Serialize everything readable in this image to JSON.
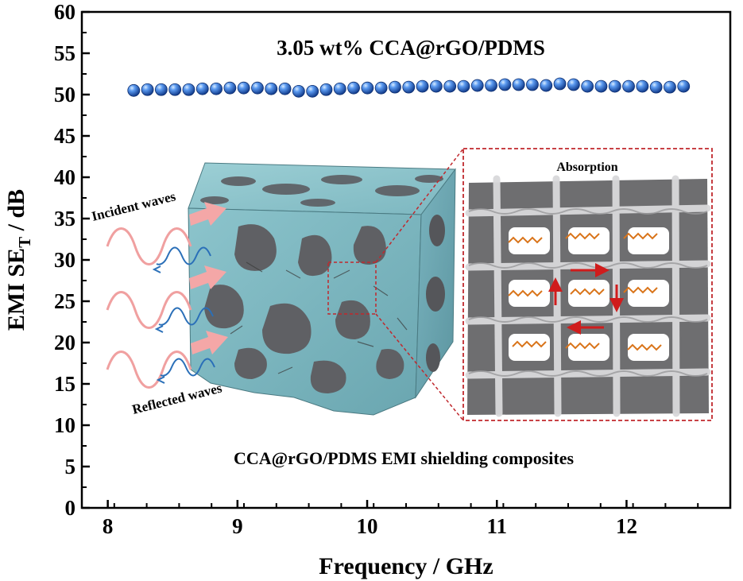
{
  "chart_data": {
    "type": "scatter",
    "title": "",
    "xlabel": "Frequency / GHz",
    "ylabel_main": "EMI SE",
    "ylabel_sub": "T",
    "ylabel_tail": " / dB",
    "xlim": [
      7.8,
      12.8
    ],
    "ylim": [
      0,
      60
    ],
    "xticks": [
      8,
      9,
      10,
      11,
      12
    ],
    "yticks": [
      0,
      5,
      10,
      15,
      20,
      25,
      30,
      35,
      40,
      45,
      50,
      55,
      60
    ],
    "grid": false,
    "series": [
      {
        "name": "3.05 wt% CCA@rGO/PDMS",
        "color": "#2f6fd6",
        "x": [
          8.2,
          8.306,
          8.412,
          8.518,
          8.624,
          8.73,
          8.836,
          8.942,
          9.048,
          9.154,
          9.26,
          9.366,
          9.472,
          9.578,
          9.684,
          9.79,
          9.896,
          10.002,
          10.108,
          10.214,
          10.32,
          10.426,
          10.532,
          10.638,
          10.744,
          10.85,
          10.956,
          11.062,
          11.168,
          11.274,
          11.38,
          11.486,
          11.592,
          11.698,
          11.804,
          11.91,
          12.016,
          12.122,
          12.228,
          12.334,
          12.44
        ],
        "y": [
          50.5,
          50.6,
          50.6,
          50.6,
          50.6,
          50.7,
          50.7,
          50.8,
          50.8,
          50.8,
          50.7,
          50.7,
          50.4,
          50.4,
          50.6,
          50.7,
          50.8,
          50.8,
          50.8,
          50.9,
          50.9,
          51.0,
          51.0,
          51.0,
          51.0,
          51.1,
          51.1,
          51.2,
          51.2,
          51.2,
          51.1,
          51.3,
          51.2,
          51.0,
          51.0,
          51.0,
          51.0,
          51.0,
          50.9,
          50.9,
          51.0
        ]
      }
    ],
    "annotations": {
      "series_label": "3.05 wt% CCA@rGO/PDMS",
      "incident": "Incident waves",
      "reflected": "Reflected waves",
      "absorption": "Absorption",
      "composite": "CCA@rGO/PDMS EMI shielding composites"
    },
    "colors": {
      "marker": "#2f6fd6",
      "cube_cyan": "#7fb8c2",
      "pore_gray": "#5f6064",
      "incident_wave": "#f0a0a0",
      "reflected_wave": "#2a6fb8",
      "inset_border": "#c0282d",
      "absorption_arrow": "#d01c1c",
      "absorption_wave": "#d9741a"
    }
  }
}
